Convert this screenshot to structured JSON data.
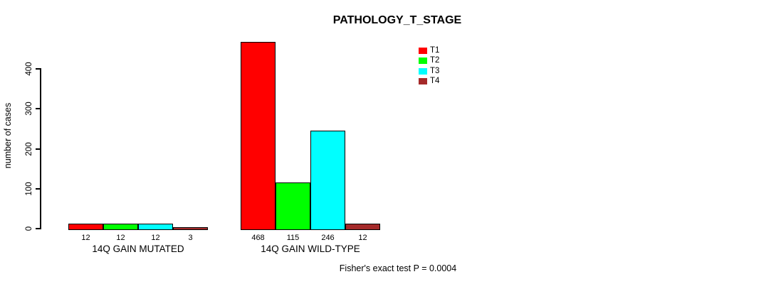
{
  "chart_data": {
    "type": "bar",
    "title": "PATHOLOGY_T_STAGE",
    "ylabel": "number of cases",
    "xlabel": "",
    "ylim": [
      0,
      400
    ],
    "yticks": [
      0,
      100,
      200,
      300,
      400
    ],
    "grid": false,
    "legend_position": "top-right",
    "categories": [
      "14Q GAIN MUTATED",
      "14Q GAIN WILD-TYPE"
    ],
    "series": [
      {
        "name": "T1",
        "color": "#FF0000",
        "values": [
          12,
          468
        ]
      },
      {
        "name": "T2",
        "color": "#00FF00",
        "values": [
          12,
          115
        ]
      },
      {
        "name": "T3",
        "color": "#00FFFF",
        "values": [
          12,
          246
        ]
      },
      {
        "name": "T4",
        "color": "#A52A2A",
        "values": [
          3,
          12
        ]
      }
    ],
    "bar_value_labels": [
      [
        "12",
        "12",
        "12",
        "3"
      ],
      [
        "468",
        "115",
        "246",
        "12"
      ]
    ],
    "annotation": "Fisher's exact test P = 0.0004"
  }
}
